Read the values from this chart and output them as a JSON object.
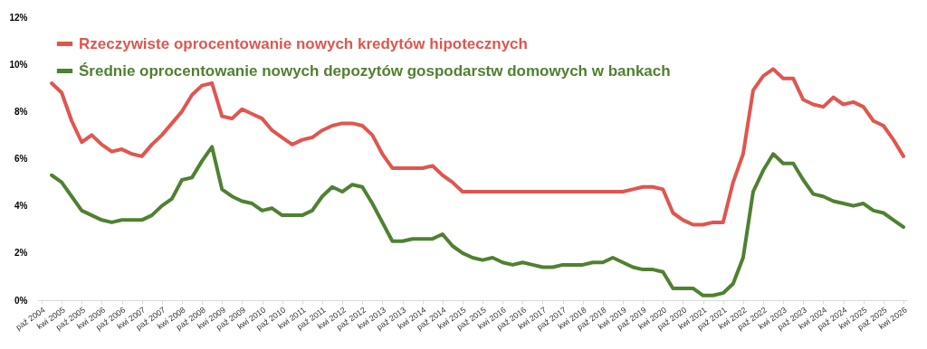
{
  "chart_data": {
    "type": "line",
    "categories": [
      "paź 2004",
      null,
      "kwi 2005",
      null,
      "paź 2005",
      null,
      "kwi 2006",
      null,
      "paź 2006",
      null,
      "kwi 2007",
      null,
      "paź 2007",
      null,
      "kwi 2008",
      null,
      "paź 2008",
      null,
      "kwi 2009",
      null,
      "paź 2009",
      null,
      "kwi 2010",
      null,
      "paź 2010",
      null,
      "kwi 2011",
      null,
      "paź 2011",
      null,
      "kwi 2012",
      null,
      "paź 2012",
      null,
      "kwi 2013",
      null,
      "paź 2013",
      null,
      "kwi 2014",
      null,
      "paź 2014",
      null,
      "kwi 2015",
      null,
      "paź 2015",
      null,
      "kwi 2016",
      null,
      "paź 2016",
      null,
      "kwi 2017",
      null,
      "paź 2017",
      null,
      "kwi 2018",
      null,
      "paź 2018",
      null,
      "kwi 2019",
      null,
      "paź 2019",
      null,
      "kwi 2020",
      null,
      "paź 2020",
      null,
      "kwi 2021",
      null,
      "paź 2021",
      null,
      "kwi 2022",
      null,
      "paź 2022",
      null,
      "kwi 2023",
      null,
      "paź 2023",
      null,
      "kwi 2024",
      null,
      "paź 2024",
      null,
      "kwi 2025",
      null,
      "paź 2025",
      null,
      "kwi 2026"
    ],
    "series": [
      {
        "name": "Rzeczywiste oprocentowanie nowych kredytów hipotecznych",
        "color": "#e0564e",
        "values": [
          null,
          9.2,
          8.8,
          7.6,
          6.7,
          7.0,
          6.6,
          6.3,
          6.4,
          6.2,
          6.1,
          6.6,
          7.0,
          7.5,
          8.0,
          8.7,
          9.1,
          9.2,
          7.8,
          7.7,
          8.1,
          7.9,
          7.7,
          7.2,
          6.9,
          6.6,
          6.8,
          6.9,
          7.2,
          7.4,
          7.5,
          7.5,
          7.4,
          7.0,
          6.2,
          5.6,
          5.6,
          5.6,
          5.6,
          5.7,
          5.3,
          5.0,
          4.6,
          4.6,
          4.6,
          4.6,
          4.6,
          4.6,
          4.6,
          4.6,
          4.6,
          4.6,
          4.6,
          4.6,
          4.6,
          4.6,
          4.6,
          4.6,
          4.6,
          4.7,
          4.8,
          4.8,
          4.7,
          3.7,
          3.4,
          3.2,
          3.2,
          3.3,
          3.3,
          5.0,
          6.2,
          8.9,
          9.5,
          9.8,
          9.4,
          9.4,
          8.5,
          8.3,
          8.2,
          8.6,
          8.3,
          8.4,
          8.2,
          7.6,
          7.4,
          6.8,
          6.1
        ]
      },
      {
        "name": "Średnie oprocentowanie nowych depozytów gospodarstw domowych w bankach",
        "color": "#4f8131",
        "values": [
          null,
          5.3,
          5.0,
          4.4,
          3.8,
          3.6,
          3.4,
          3.3,
          3.4,
          3.4,
          3.4,
          3.6,
          4.0,
          4.3,
          5.1,
          5.2,
          5.9,
          6.5,
          4.7,
          4.4,
          4.2,
          4.1,
          3.8,
          3.9,
          3.6,
          3.6,
          3.6,
          3.8,
          4.4,
          4.8,
          4.6,
          4.9,
          4.8,
          4.1,
          3.3,
          2.5,
          2.5,
          2.6,
          2.6,
          2.6,
          2.8,
          2.3,
          2.0,
          1.8,
          1.7,
          1.8,
          1.6,
          1.5,
          1.6,
          1.5,
          1.4,
          1.4,
          1.5,
          1.5,
          1.5,
          1.6,
          1.6,
          1.8,
          1.6,
          1.4,
          1.3,
          1.3,
          1.2,
          0.5,
          0.5,
          0.5,
          0.2,
          0.2,
          0.3,
          0.7,
          1.8,
          4.6,
          5.5,
          6.2,
          5.8,
          5.8,
          5.1,
          4.5,
          4.4,
          4.2,
          4.1,
          4.0,
          4.1,
          3.8,
          3.7,
          3.4,
          3.1
        ]
      }
    ],
    "ylim": [
      0,
      12
    ],
    "yticks": [
      {
        "value": 0,
        "label": "0%"
      },
      {
        "value": 2,
        "label": "2%"
      },
      {
        "value": 4,
        "label": "4%"
      },
      {
        "value": 6,
        "label": "6%"
      },
      {
        "value": 8,
        "label": "8%"
      },
      {
        "value": 10,
        "label": "10%"
      },
      {
        "value": 12,
        "label": "12%"
      }
    ],
    "grid": false,
    "legend": "top left",
    "line_style": "solid",
    "marker": "none"
  }
}
